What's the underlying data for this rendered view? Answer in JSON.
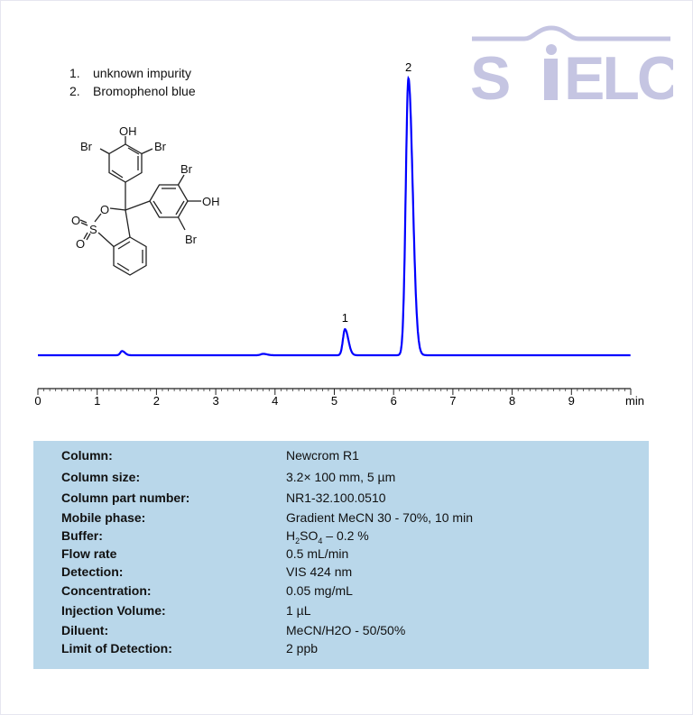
{
  "legend": [
    {
      "num": "1.",
      "label": "unknown impurity"
    },
    {
      "num": "2.",
      "label": "Bromophenol blue"
    }
  ],
  "logo": {
    "text": "SIELC",
    "color": "#c5c5e2"
  },
  "structure": {
    "atoms": [
      "OH",
      "Br",
      "Br",
      "Br",
      "OH",
      "Br",
      "O",
      "S",
      "O",
      "O"
    ]
  },
  "chart_data": {
    "type": "line",
    "xlabel": "min",
    "xlim": [
      0,
      10
    ],
    "xticks": [
      "0",
      "1",
      "2",
      "3",
      "4",
      "5",
      "6",
      "7",
      "8",
      "9"
    ],
    "y_axis_shown": false,
    "line_color": "#0000ff",
    "peaks": [
      {
        "label": "",
        "rt": 1.42,
        "height": 1.5,
        "width": 0.03
      },
      {
        "label": "",
        "rt": 3.8,
        "height": 0.5,
        "width": 0.04
      },
      {
        "label": "1",
        "rt": 5.18,
        "height": 9.4,
        "width": 0.035
      },
      {
        "label": "2",
        "rt": 6.25,
        "height": 100,
        "width": 0.045
      }
    ]
  },
  "conditions": [
    {
      "key": "Column:",
      "value": "Newcrom R1"
    },
    {
      "key": "Column size:",
      "value": "3.2× 100 mm, 5 µm"
    },
    {
      "key": "Column part number:",
      "value": "NR1-32.100.0510"
    },
    {
      "key": "Mobile phase:",
      "value": "Gradient MeCN 30 - 70%, 10 min"
    },
    {
      "key": "Buffer:",
      "value_parts": [
        "H",
        "2",
        "SO",
        "4",
        " – 0.2 %"
      ]
    },
    {
      "key": "Flow rate",
      "value": "0.5 mL/min"
    },
    {
      "key": "Detection:",
      "value": "VIS 424 nm"
    },
    {
      "key": "Concentration:",
      "value": "0.05 mg/mL"
    },
    {
      "key": "Injection Volume:",
      "value": "1 µL"
    },
    {
      "key": "Diluent:",
      "value": "MeCN/H2O - 50/50%"
    },
    {
      "key": "Limit of Detection:",
      "value": "2 ppb"
    }
  ]
}
